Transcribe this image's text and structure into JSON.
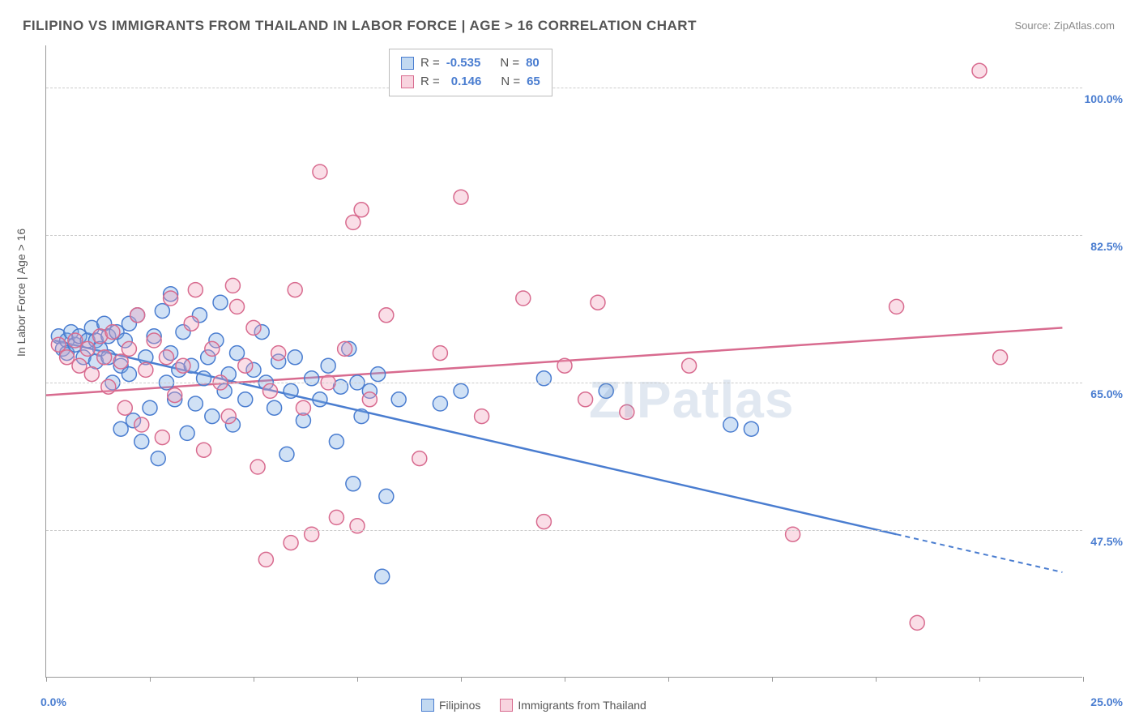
{
  "title": "FILIPINO VS IMMIGRANTS FROM THAILAND IN LABOR FORCE | AGE > 16 CORRELATION CHART",
  "source_label": "Source: ",
  "source_value": "ZipAtlas.com",
  "ylabel": "In Labor Force | Age > 16",
  "watermark": "ZIPatlas",
  "chart": {
    "type": "scatter",
    "background_color": "#ffffff",
    "grid_color": "#cccccc",
    "axis_color": "#999999",
    "label_color": "#4a7dd0",
    "xlim": [
      0,
      25
    ],
    "ylim": [
      30,
      105
    ],
    "y_ticks": [
      47.5,
      65.0,
      82.5,
      100.0
    ],
    "x_ticks": [
      0,
      2.5,
      5,
      7.5,
      10,
      12.5,
      15,
      17.5,
      20,
      22.5,
      25
    ],
    "x_origin_label": "0.0%",
    "x_end_label": "25.0%",
    "marker_radius": 9,
    "marker_stroke_width": 1.5,
    "series": [
      {
        "name": "Filipinos",
        "color_fill": "rgba(120,170,225,0.35)",
        "color_stroke": "#4a7dd0",
        "R": "-0.535",
        "N": "80",
        "trend": {
          "x1": 0.2,
          "y1": 70.0,
          "x2": 20.5,
          "y2": 47.0,
          "dash_extend_x2": 24.5,
          "dash_extend_y2": 42.5
        },
        "points": [
          [
            0.3,
            70.5
          ],
          [
            0.4,
            69.0
          ],
          [
            0.5,
            70.0
          ],
          [
            0.6,
            71.0
          ],
          [
            0.5,
            68.5
          ],
          [
            0.7,
            69.5
          ],
          [
            0.8,
            70.5
          ],
          [
            0.9,
            68.0
          ],
          [
            1.0,
            70.0
          ],
          [
            1.1,
            71.5
          ],
          [
            1.2,
            67.5
          ],
          [
            1.2,
            70.0
          ],
          [
            1.3,
            69.0
          ],
          [
            1.4,
            72.0
          ],
          [
            1.5,
            68.0
          ],
          [
            1.5,
            70.5
          ],
          [
            1.6,
            65.0
          ],
          [
            1.7,
            71.0
          ],
          [
            1.8,
            67.0
          ],
          [
            1.8,
            59.5
          ],
          [
            1.9,
            70.0
          ],
          [
            2.0,
            66.0
          ],
          [
            2.0,
            72.0
          ],
          [
            2.1,
            60.5
          ],
          [
            2.2,
            73.0
          ],
          [
            2.3,
            58.0
          ],
          [
            2.4,
            68.0
          ],
          [
            2.5,
            62.0
          ],
          [
            2.6,
            70.5
          ],
          [
            2.7,
            56.0
          ],
          [
            2.8,
            73.5
          ],
          [
            2.9,
            65.0
          ],
          [
            3.0,
            68.5
          ],
          [
            3.0,
            75.5
          ],
          [
            3.1,
            63.0
          ],
          [
            3.2,
            66.5
          ],
          [
            3.3,
            71.0
          ],
          [
            3.4,
            59.0
          ],
          [
            3.5,
            67.0
          ],
          [
            3.6,
            62.5
          ],
          [
            3.7,
            73.0
          ],
          [
            3.8,
            65.5
          ],
          [
            3.9,
            68.0
          ],
          [
            4.0,
            61.0
          ],
          [
            4.1,
            70.0
          ],
          [
            4.2,
            74.5
          ],
          [
            4.3,
            64.0
          ],
          [
            4.4,
            66.0
          ],
          [
            4.5,
            60.0
          ],
          [
            4.6,
            68.5
          ],
          [
            4.8,
            63.0
          ],
          [
            5.0,
            66.5
          ],
          [
            5.2,
            71.0
          ],
          [
            5.3,
            65.0
          ],
          [
            5.5,
            62.0
          ],
          [
            5.6,
            67.5
          ],
          [
            5.8,
            56.5
          ],
          [
            5.9,
            64.0
          ],
          [
            6.0,
            68.0
          ],
          [
            6.2,
            60.5
          ],
          [
            6.4,
            65.5
          ],
          [
            6.6,
            63.0
          ],
          [
            6.8,
            67.0
          ],
          [
            7.0,
            58.0
          ],
          [
            7.1,
            64.5
          ],
          [
            7.3,
            69.0
          ],
          [
            7.4,
            53.0
          ],
          [
            7.5,
            65.0
          ],
          [
            7.6,
            61.0
          ],
          [
            7.8,
            64.0
          ],
          [
            8.0,
            66.0
          ],
          [
            8.1,
            42.0
          ],
          [
            8.2,
            51.5
          ],
          [
            8.5,
            63.0
          ],
          [
            9.5,
            62.5
          ],
          [
            10.0,
            64.0
          ],
          [
            12.0,
            65.5
          ],
          [
            13.5,
            64.0
          ],
          [
            16.5,
            60.0
          ],
          [
            17.0,
            59.5
          ]
        ]
      },
      {
        "name": "Immigrants from Thailand",
        "color_fill": "rgba(240,160,185,0.35)",
        "color_stroke": "#d86b8f",
        "R": "0.146",
        "N": "65",
        "trend": {
          "x1": 0.0,
          "y1": 63.5,
          "x2": 24.5,
          "y2": 71.5
        },
        "points": [
          [
            0.3,
            69.5
          ],
          [
            0.5,
            68.0
          ],
          [
            0.7,
            70.0
          ],
          [
            0.8,
            67.0
          ],
          [
            1.0,
            69.0
          ],
          [
            1.1,
            66.0
          ],
          [
            1.3,
            70.5
          ],
          [
            1.4,
            68.0
          ],
          [
            1.5,
            64.5
          ],
          [
            1.6,
            71.0
          ],
          [
            1.8,
            67.5
          ],
          [
            1.9,
            62.0
          ],
          [
            2.0,
            69.0
          ],
          [
            2.2,
            73.0
          ],
          [
            2.3,
            60.0
          ],
          [
            2.4,
            66.5
          ],
          [
            2.6,
            70.0
          ],
          [
            2.8,
            58.5
          ],
          [
            2.9,
            68.0
          ],
          [
            3.0,
            75.0
          ],
          [
            3.1,
            63.5
          ],
          [
            3.3,
            67.0
          ],
          [
            3.5,
            72.0
          ],
          [
            3.6,
            76.0
          ],
          [
            3.8,
            57.0
          ],
          [
            4.0,
            69.0
          ],
          [
            4.2,
            65.0
          ],
          [
            4.4,
            61.0
          ],
          [
            4.5,
            76.5
          ],
          [
            4.6,
            74.0
          ],
          [
            4.8,
            67.0
          ],
          [
            5.0,
            71.5
          ],
          [
            5.1,
            55.0
          ],
          [
            5.3,
            44.0
          ],
          [
            5.4,
            64.0
          ],
          [
            5.6,
            68.5
          ],
          [
            5.9,
            46.0
          ],
          [
            6.0,
            76.0
          ],
          [
            6.2,
            62.0
          ],
          [
            6.4,
            47.0
          ],
          [
            6.6,
            90.0
          ],
          [
            6.8,
            65.0
          ],
          [
            7.0,
            49.0
          ],
          [
            7.2,
            69.0
          ],
          [
            7.4,
            84.0
          ],
          [
            7.5,
            48.0
          ],
          [
            7.6,
            85.5
          ],
          [
            7.8,
            63.0
          ],
          [
            8.2,
            73.0
          ],
          [
            9.0,
            56.0
          ],
          [
            9.5,
            68.5
          ],
          [
            10.0,
            87.0
          ],
          [
            10.5,
            61.0
          ],
          [
            11.5,
            75.0
          ],
          [
            12.0,
            48.5
          ],
          [
            12.5,
            67.0
          ],
          [
            13.0,
            63.0
          ],
          [
            13.3,
            74.5
          ],
          [
            14.0,
            61.5
          ],
          [
            15.5,
            67.0
          ],
          [
            18.0,
            47.0
          ],
          [
            20.5,
            74.0
          ],
          [
            21.0,
            36.5
          ],
          [
            22.5,
            102.0
          ],
          [
            23.0,
            68.0
          ]
        ]
      }
    ]
  },
  "legend_top": {
    "R_label": "R =",
    "N_label": "N ="
  },
  "legend_bottom": {
    "items": [
      "Filipinos",
      "Immigrants from Thailand"
    ]
  }
}
